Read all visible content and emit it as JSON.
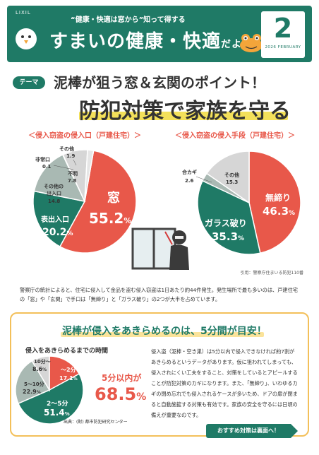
{
  "header": {
    "logo": "LIXIL",
    "tagline": "“健康・快適は窓から”知って得する",
    "title_main": "すまいの健康・快適",
    "title_suffix": "だより",
    "issue_number": "2",
    "issue_date": "2026 FEBRUARY"
  },
  "theme": {
    "badge": "テーマ",
    "headline1": "泥棒が狙う窓＆玄関のポイント！",
    "headline2": "防犯対策で家族を守る"
  },
  "chart_data": [
    {
      "type": "pie",
      "title": "＜侵入窃盗の侵入口（戸建住宅）＞",
      "unit": "%",
      "slices": [
        {
          "label": "窓",
          "value": 55.2,
          "color": "#e8584a"
        },
        {
          "label": "表出入口",
          "value": 20.2,
          "color": "#1f7a66"
        },
        {
          "label": "その他の出入口",
          "value": 14.8,
          "color": "#a9b9b3"
        },
        {
          "label": "非常口",
          "value": 0.1,
          "color": "#cccccc"
        },
        {
          "label": "不明",
          "value": 7.8,
          "color": "#d6d6d6"
        },
        {
          "label": "その他",
          "value": 1.9,
          "color": "#e6e6e6"
        }
      ]
    },
    {
      "type": "pie",
      "title": "＜侵入窃盗の侵入手段（戸建住宅）＞",
      "unit": "%",
      "slices": [
        {
          "label": "無締り",
          "value": 46.3,
          "color": "#e8584a"
        },
        {
          "label": "ガラス破り",
          "value": 35.3,
          "color": "#1f7a66"
        },
        {
          "label": "合カギ",
          "value": 2.6,
          "color": "#a9b9b3"
        },
        {
          "label": "その他",
          "value": 15.3,
          "color": "#d6d6d6"
        }
      ]
    },
    {
      "type": "pie",
      "title": "侵入をあきらめるまでの時間",
      "unit": "%",
      "slices": [
        {
          "label": "〜2分",
          "value": 17.1,
          "color": "#e8584a"
        },
        {
          "label": "2〜5分",
          "value": 51.4,
          "color": "#1f7a66"
        },
        {
          "label": "5〜10分",
          "value": 22.9,
          "color": "#a9b9b3"
        },
        {
          "label": "10分〜",
          "value": 8.6,
          "color": "#d6d6d6"
        }
      ]
    }
  ],
  "labels": {
    "pie1": {
      "window_name": "窓",
      "window_val": "55.2",
      "window_unit": "%",
      "front_name": "表出入口",
      "front_val": "20.2",
      "front_unit": "%",
      "other_entry_name1": "その他の",
      "other_entry_name2": "出入口",
      "other_entry_val": "14.8",
      "emergency_name": "非常口",
      "emergency_val": "0.1",
      "unknown_name": "不明",
      "unknown_val": "7.8",
      "other_name": "その他",
      "other_val": "1.9"
    },
    "pie2": {
      "unlocked_name": "無締り",
      "unlocked_val": "46.3",
      "unlocked_unit": "%",
      "glass_name": "ガラス破り",
      "glass_val": "35.3",
      "glass_unit": "%",
      "key_name": "合カギ",
      "key_val": "2.6",
      "other_name": "その他",
      "other_val": "15.3"
    },
    "donut": {
      "s1_name": "〜2分",
      "s1_val": "17.1",
      "s1_unit": "%",
      "s2_name": "2〜5分",
      "s2_val": "51.4",
      "s2_unit": "%",
      "s3_name": "5〜10分",
      "s3_val": "22.9",
      "s3_unit": "%",
      "s4_name": "10分〜",
      "s4_val": "8.6",
      "s4_unit": "%"
    }
  },
  "citation1": "引用：警察庁住まいる防犯110番",
  "intro": "警察庁の統計によると、住宅に侵入して金品を盗む侵入窃盗は1日あたり約44件発生。発生場所で最も多いのは、戸建住宅の「窓」や「玄関」で手口は「無締り」と「ガラス破り」の2つが大半を占めています。",
  "bottom": {
    "title": "泥棒が侵入をあきらめるのは、5分間が目安！",
    "lead": "5分以内が",
    "pct": "68.5",
    "pct_unit": "%",
    "source": "出典：(財) 都市防犯研究センター",
    "body": "侵入盗（泥棒・空き巣）は5分以内で侵入できなければ約7割があきらめるというデータがあります。仮に狙われてしまっても、侵入されにくい工夫をすること、対策をしているとアピールすることが防犯対策のカギになります。また、「無締り」、いわゆるカギの閉め忘れでも侵入されるケースが多いため、ドアの扉が閉まると自動施錠する対策も有効です。家族の安全を守るには日頃の備えが重要なのです。",
    "cta": "おすすめ対策は裏面へ！"
  }
}
